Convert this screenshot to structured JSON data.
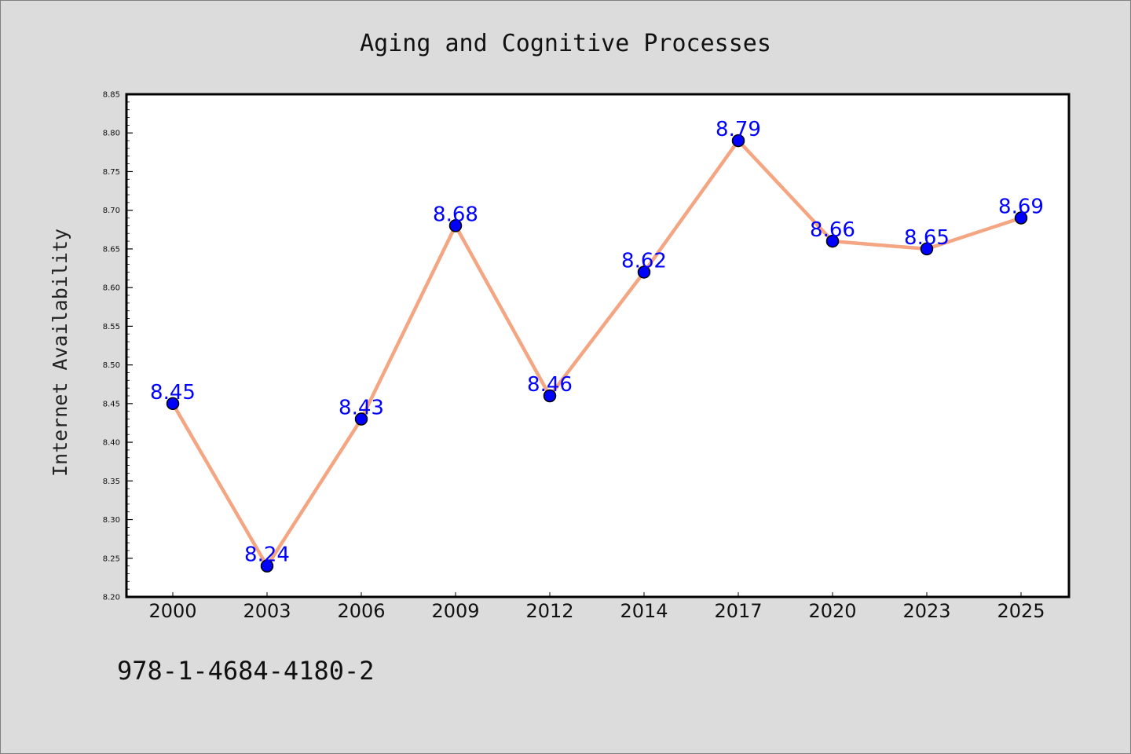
{
  "chart_data": {
    "type": "line",
    "title": "Aging and Cognitive Processes",
    "xlabel": "",
    "ylabel": "Internet Availability",
    "categories": [
      "2000",
      "2003",
      "2006",
      "2009",
      "2012",
      "2014",
      "2017",
      "2020",
      "2023",
      "2025"
    ],
    "series": [
      {
        "values": [
          8.45,
          8.24,
          8.43,
          8.68,
          8.46,
          8.62,
          8.79,
          8.66,
          8.65,
          8.69
        ],
        "labels": [
          "8.45",
          "8.24",
          "8.43",
          "8.68",
          "8.46",
          "8.62",
          "8.79",
          "8.66",
          "8.65",
          "8.69"
        ],
        "line_color": "#f4a582",
        "marker_color": "#0000ff",
        "label_color": "#0000ff"
      }
    ],
    "ylim": [
      8.2,
      8.85
    ],
    "yticks": [
      "8.20",
      "8.25",
      "8.30",
      "8.35",
      "8.40",
      "8.45",
      "8.50",
      "8.55",
      "8.60",
      "8.65",
      "8.70",
      "8.75",
      "8.80",
      "8.85"
    ],
    "grid": false,
    "legend": "none",
    "background_color": "#dcdcdc",
    "plot_background_color": "#ffffff"
  },
  "footer": {
    "isbn": "978-1-4684-4180-2"
  }
}
